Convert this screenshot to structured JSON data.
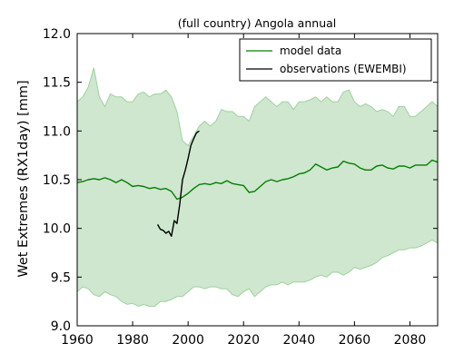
{
  "chart_data": {
    "type": "line",
    "title": "(full country) Angola annual",
    "xlabel": "",
    "ylabel": "Wet Extremes (RX1day) [mm]",
    "xlim": [
      1960,
      2090
    ],
    "ylim": [
      9.0,
      12.0
    ],
    "xticks": [
      "1960",
      "1980",
      "2000",
      "2020",
      "2040",
      "2060",
      "2080"
    ],
    "yticks": [
      "9.0",
      "9.5",
      "10.0",
      "10.5",
      "11.0",
      "11.5",
      "12.0"
    ],
    "grid": false,
    "legend_position": "top-right",
    "colors": {
      "model": "#008000",
      "band": "#cfe6cf",
      "band_edge": "#9fd29f",
      "observations": "#000000"
    },
    "series": [
      {
        "name": "model data",
        "x": [
          1960,
          1962,
          1964,
          1966,
          1968,
          1970,
          1972,
          1974,
          1976,
          1978,
          1980,
          1982,
          1984,
          1986,
          1988,
          1990,
          1992,
          1994,
          1996,
          1998,
          2000,
          2002,
          2004,
          2006,
          2008,
          2010,
          2012,
          2014,
          2016,
          2018,
          2020,
          2022,
          2024,
          2026,
          2028,
          2030,
          2032,
          2034,
          2036,
          2038,
          2040,
          2042,
          2044,
          2046,
          2048,
          2050,
          2052,
          2054,
          2056,
          2058,
          2060,
          2062,
          2064,
          2066,
          2068,
          2070,
          2072,
          2074,
          2076,
          2078,
          2080,
          2082,
          2084,
          2086,
          2088,
          2090
        ],
        "values": [
          10.47,
          10.48,
          10.5,
          10.51,
          10.5,
          10.52,
          10.5,
          10.47,
          10.5,
          10.47,
          10.43,
          10.44,
          10.43,
          10.41,
          10.42,
          10.4,
          10.41,
          10.38,
          10.3,
          10.32,
          10.36,
          10.41,
          10.45,
          10.46,
          10.45,
          10.47,
          10.46,
          10.49,
          10.46,
          10.45,
          10.44,
          10.37,
          10.38,
          10.43,
          10.48,
          10.5,
          10.48,
          10.5,
          10.51,
          10.53,
          10.56,
          10.57,
          10.6,
          10.66,
          10.63,
          10.6,
          10.62,
          10.63,
          10.69,
          10.67,
          10.66,
          10.62,
          10.6,
          10.6,
          10.64,
          10.65,
          10.62,
          10.61,
          10.64,
          10.64,
          10.62,
          10.65,
          10.65,
          10.65,
          10.7,
          10.68
        ]
      },
      {
        "name": "observations (EWEMBI)",
        "x": [
          1989,
          1990,
          1991,
          1992,
          1993,
          1994,
          1995,
          1996,
          1997,
          1998,
          1999,
          2000,
          2001,
          2002,
          2003,
          2004
        ],
        "values": [
          10.04,
          9.99,
          9.98,
          9.95,
          9.97,
          9.92,
          10.08,
          10.05,
          10.25,
          10.5,
          10.6,
          10.72,
          10.85,
          10.92,
          10.98,
          11.0
        ]
      }
    ],
    "band": {
      "x": [
        1960,
        1962,
        1964,
        1966,
        1968,
        1970,
        1972,
        1974,
        1976,
        1978,
        1980,
        1982,
        1984,
        1986,
        1988,
        1990,
        1992,
        1994,
        1996,
        1998,
        2000,
        2002,
        2004,
        2006,
        2008,
        2010,
        2012,
        2014,
        2016,
        2018,
        2020,
        2022,
        2024,
        2026,
        2028,
        2030,
        2032,
        2034,
        2036,
        2038,
        2040,
        2042,
        2044,
        2046,
        2048,
        2050,
        2052,
        2054,
        2056,
        2058,
        2060,
        2062,
        2064,
        2066,
        2068,
        2070,
        2072,
        2074,
        2076,
        2078,
        2080,
        2082,
        2084,
        2086,
        2088,
        2090
      ],
      "upper": [
        11.3,
        11.35,
        11.45,
        11.65,
        11.35,
        11.25,
        11.38,
        11.35,
        11.35,
        11.3,
        11.3,
        11.38,
        11.4,
        11.35,
        11.38,
        11.38,
        11.42,
        11.35,
        11.2,
        10.9,
        10.85,
        10.95,
        11.05,
        11.1,
        11.05,
        11.1,
        11.22,
        11.2,
        11.2,
        11.15,
        11.15,
        11.1,
        11.25,
        11.3,
        11.35,
        11.3,
        11.25,
        11.3,
        11.3,
        11.22,
        11.3,
        11.3,
        11.32,
        11.35,
        11.3,
        11.35,
        11.3,
        11.3,
        11.4,
        11.42,
        11.3,
        11.25,
        11.28,
        11.25,
        11.2,
        11.22,
        11.2,
        11.15,
        11.25,
        11.25,
        11.15,
        11.15,
        11.2,
        11.25,
        11.3,
        11.25
      ],
      "lower": [
        9.35,
        9.4,
        9.38,
        9.32,
        9.3,
        9.35,
        9.32,
        9.3,
        9.25,
        9.22,
        9.23,
        9.2,
        9.22,
        9.2,
        9.2,
        9.25,
        9.25,
        9.27,
        9.3,
        9.3,
        9.35,
        9.4,
        9.4,
        9.38,
        9.4,
        9.4,
        9.38,
        9.38,
        9.32,
        9.3,
        9.35,
        9.38,
        9.3,
        9.35,
        9.4,
        9.42,
        9.42,
        9.45,
        9.42,
        9.45,
        9.45,
        9.45,
        9.47,
        9.5,
        9.52,
        9.5,
        9.55,
        9.55,
        9.52,
        9.55,
        9.6,
        9.58,
        9.6,
        9.62,
        9.65,
        9.7,
        9.72,
        9.75,
        9.78,
        9.78,
        9.8,
        9.8,
        9.82,
        9.85,
        9.88,
        9.85
      ]
    }
  }
}
